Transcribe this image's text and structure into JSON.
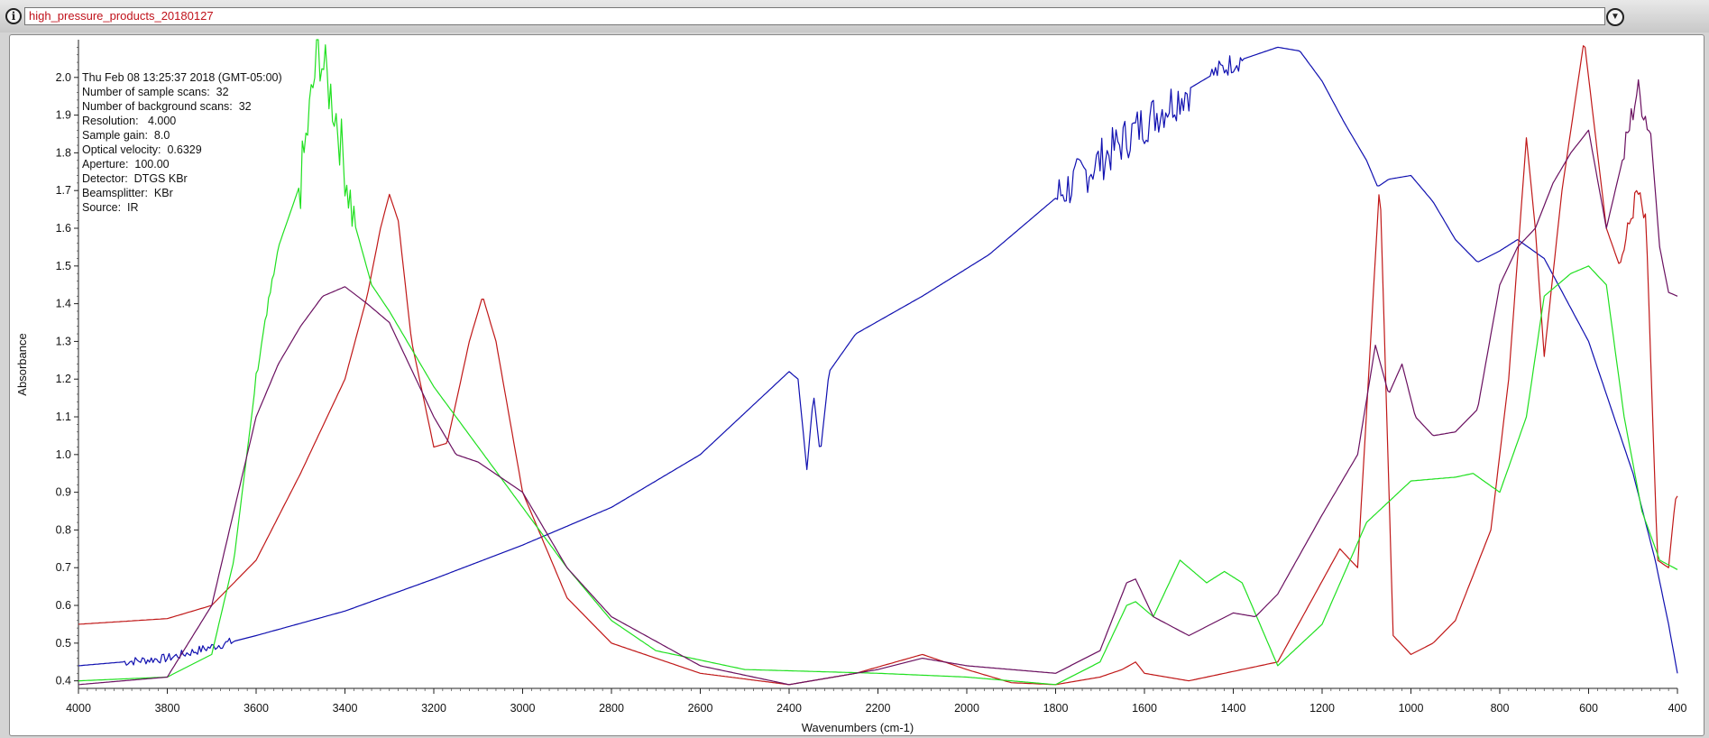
{
  "window": {
    "title": "high_pressure_products_20180127",
    "info_icon": "info-icon",
    "dropdown_icon": "chevron-down-icon"
  },
  "info_lines": [
    "Thu Feb 08 13:25:37 2018 (GMT-05:00)",
    "Number of sample scans:  32",
    "Number of background scans:  32",
    "Resolution:   4.000",
    "Sample gain:  8.0",
    "Optical velocity:  0.6329",
    "Aperture:  100.00",
    "Detector:  DTGS KBr",
    "Beamsplitter:  KBr",
    "Source:  IR"
  ],
  "chart_data": {
    "type": "line",
    "xlabel": "Wavenumbers (cm-1)",
    "ylabel": "Absorbance",
    "xlim": [
      4000,
      400
    ],
    "ylim": [
      0.38,
      2.1
    ],
    "x_ticks": [
      4000,
      3800,
      3600,
      3400,
      3200,
      3000,
      2800,
      2600,
      2400,
      2200,
      2000,
      1800,
      1600,
      1400,
      1200,
      1000,
      800,
      600,
      400
    ],
    "y_ticks": [
      0.4,
      0.5,
      0.6,
      0.7,
      0.8,
      0.9,
      1.0,
      1.1,
      1.2,
      1.3,
      1.4,
      1.5,
      1.6,
      1.7,
      1.8,
      1.9,
      2.0
    ],
    "grid": false,
    "series": [
      {
        "color": "#1010b0",
        "noisy": [
          [
            3900,
            3650,
            0.012
          ],
          [
            1800,
            1500,
            0.06
          ],
          [
            1450,
            1380,
            0.03
          ]
        ],
        "points": [
          [
            4000,
            0.44
          ],
          [
            3800,
            0.46
          ],
          [
            3600,
            0.52
          ],
          [
            3400,
            0.585
          ],
          [
            3200,
            0.67
          ],
          [
            3000,
            0.76
          ],
          [
            2800,
            0.86
          ],
          [
            2600,
            1.0
          ],
          [
            2400,
            1.22
          ],
          [
            2380,
            1.2
          ],
          [
            2360,
            0.96
          ],
          [
            2345,
            1.16
          ],
          [
            2330,
            1.0
          ],
          [
            2310,
            1.22
          ],
          [
            2250,
            1.32
          ],
          [
            2100,
            1.42
          ],
          [
            1950,
            1.53
          ],
          [
            1800,
            1.68
          ],
          [
            1700,
            1.78
          ],
          [
            1600,
            1.88
          ],
          [
            1500,
            1.97
          ],
          [
            1400,
            2.04
          ],
          [
            1300,
            2.08
          ],
          [
            1250,
            2.07
          ],
          [
            1200,
            1.99
          ],
          [
            1150,
            1.88
          ],
          [
            1100,
            1.78
          ],
          [
            1075,
            1.71
          ],
          [
            1050,
            1.73
          ],
          [
            1000,
            1.74
          ],
          [
            950,
            1.67
          ],
          [
            900,
            1.57
          ],
          [
            850,
            1.51
          ],
          [
            800,
            1.54
          ],
          [
            760,
            1.57
          ],
          [
            700,
            1.52
          ],
          [
            600,
            1.3
          ],
          [
            500,
            0.95
          ],
          [
            450,
            0.72
          ],
          [
            420,
            0.55
          ],
          [
            400,
            0.42
          ]
        ]
      },
      {
        "color": "#c01818",
        "noisy": [
          [
            520,
            470,
            0.03
          ]
        ],
        "points": [
          [
            4000,
            0.55
          ],
          [
            3800,
            0.565
          ],
          [
            3700,
            0.6
          ],
          [
            3600,
            0.72
          ],
          [
            3500,
            0.95
          ],
          [
            3400,
            1.2
          ],
          [
            3350,
            1.42
          ],
          [
            3320,
            1.6
          ],
          [
            3300,
            1.69
          ],
          [
            3280,
            1.62
          ],
          [
            3250,
            1.3
          ],
          [
            3200,
            1.02
          ],
          [
            3170,
            1.03
          ],
          [
            3120,
            1.3
          ],
          [
            3090,
            1.42
          ],
          [
            3060,
            1.3
          ],
          [
            3000,
            0.9
          ],
          [
            2900,
            0.62
          ],
          [
            2800,
            0.5
          ],
          [
            2600,
            0.42
          ],
          [
            2400,
            0.39
          ],
          [
            2250,
            0.42
          ],
          [
            2100,
            0.47
          ],
          [
            2000,
            0.43
          ],
          [
            1900,
            0.395
          ],
          [
            1800,
            0.39
          ],
          [
            1700,
            0.41
          ],
          [
            1650,
            0.43
          ],
          [
            1620,
            0.45
          ],
          [
            1600,
            0.42
          ],
          [
            1500,
            0.4
          ],
          [
            1300,
            0.45
          ],
          [
            1160,
            0.75
          ],
          [
            1120,
            0.7
          ],
          [
            1070,
            1.73
          ],
          [
            1040,
            0.52
          ],
          [
            1000,
            0.47
          ],
          [
            950,
            0.5
          ],
          [
            900,
            0.56
          ],
          [
            820,
            0.8
          ],
          [
            780,
            1.2
          ],
          [
            740,
            1.84
          ],
          [
            720,
            1.6
          ],
          [
            700,
            1.26
          ],
          [
            660,
            1.7
          ],
          [
            610,
            2.1
          ],
          [
            560,
            1.6
          ],
          [
            530,
            1.5
          ],
          [
            490,
            1.7
          ],
          [
            470,
            1.6
          ],
          [
            445,
            0.72
          ],
          [
            420,
            0.7
          ],
          [
            405,
            0.88
          ],
          [
            400,
            0.89
          ]
        ]
      },
      {
        "color": "#20e020",
        "noisy": [
          [
            3600,
            3560,
            0.02
          ],
          [
            3500,
            3380,
            0.08
          ]
        ],
        "points": [
          [
            4000,
            0.4
          ],
          [
            3800,
            0.41
          ],
          [
            3700,
            0.47
          ],
          [
            3650,
            0.72
          ],
          [
            3600,
            1.2
          ],
          [
            3550,
            1.55
          ],
          [
            3500,
            1.72
          ],
          [
            3460,
            2.08
          ],
          [
            3420,
            1.9
          ],
          [
            3380,
            1.62
          ],
          [
            3340,
            1.45
          ],
          [
            3300,
            1.38
          ],
          [
            3200,
            1.18
          ],
          [
            3100,
            1.02
          ],
          [
            3000,
            0.86
          ],
          [
            2900,
            0.7
          ],
          [
            2800,
            0.56
          ],
          [
            2700,
            0.48
          ],
          [
            2500,
            0.43
          ],
          [
            2200,
            0.42
          ],
          [
            2000,
            0.41
          ],
          [
            1800,
            0.39
          ],
          [
            1700,
            0.45
          ],
          [
            1640,
            0.6
          ],
          [
            1620,
            0.61
          ],
          [
            1580,
            0.57
          ],
          [
            1520,
            0.72
          ],
          [
            1460,
            0.66
          ],
          [
            1420,
            0.69
          ],
          [
            1380,
            0.66
          ],
          [
            1300,
            0.44
          ],
          [
            1200,
            0.55
          ],
          [
            1100,
            0.82
          ],
          [
            1000,
            0.93
          ],
          [
            900,
            0.94
          ],
          [
            860,
            0.95
          ],
          [
            800,
            0.9
          ],
          [
            740,
            1.1
          ],
          [
            700,
            1.42
          ],
          [
            640,
            1.48
          ],
          [
            600,
            1.5
          ],
          [
            560,
            1.45
          ],
          [
            520,
            1.1
          ],
          [
            480,
            0.85
          ],
          [
            440,
            0.72
          ],
          [
            400,
            0.695
          ]
        ]
      },
      {
        "color": "#6a1060",
        "noisy": [
          [
            520,
            460,
            0.04
          ]
        ],
        "points": [
          [
            4000,
            0.39
          ],
          [
            3800,
            0.41
          ],
          [
            3700,
            0.6
          ],
          [
            3650,
            0.85
          ],
          [
            3600,
            1.1
          ],
          [
            3550,
            1.24
          ],
          [
            3500,
            1.34
          ],
          [
            3450,
            1.42
          ],
          [
            3400,
            1.445
          ],
          [
            3350,
            1.4
          ],
          [
            3300,
            1.35
          ],
          [
            3200,
            1.1
          ],
          [
            3150,
            1.0
          ],
          [
            3100,
            0.98
          ],
          [
            3000,
            0.9
          ],
          [
            2900,
            0.7
          ],
          [
            2800,
            0.57
          ],
          [
            2600,
            0.44
          ],
          [
            2400,
            0.39
          ],
          [
            2200,
            0.43
          ],
          [
            2100,
            0.46
          ],
          [
            2000,
            0.44
          ],
          [
            1900,
            0.43
          ],
          [
            1800,
            0.42
          ],
          [
            1700,
            0.48
          ],
          [
            1640,
            0.66
          ],
          [
            1620,
            0.67
          ],
          [
            1580,
            0.57
          ],
          [
            1500,
            0.52
          ],
          [
            1450,
            0.55
          ],
          [
            1400,
            0.58
          ],
          [
            1350,
            0.57
          ],
          [
            1300,
            0.63
          ],
          [
            1200,
            0.84
          ],
          [
            1120,
            1.0
          ],
          [
            1080,
            1.29
          ],
          [
            1050,
            1.16
          ],
          [
            1020,
            1.24
          ],
          [
            990,
            1.1
          ],
          [
            950,
            1.05
          ],
          [
            900,
            1.06
          ],
          [
            850,
            1.12
          ],
          [
            800,
            1.45
          ],
          [
            760,
            1.55
          ],
          [
            720,
            1.6
          ],
          [
            680,
            1.72
          ],
          [
            640,
            1.8
          ],
          [
            600,
            1.86
          ],
          [
            560,
            1.6
          ],
          [
            520,
            1.8
          ],
          [
            490,
            1.97
          ],
          [
            460,
            1.85
          ],
          [
            440,
            1.55
          ],
          [
            420,
            1.43
          ],
          [
            400,
            1.42
          ]
        ]
      }
    ]
  }
}
